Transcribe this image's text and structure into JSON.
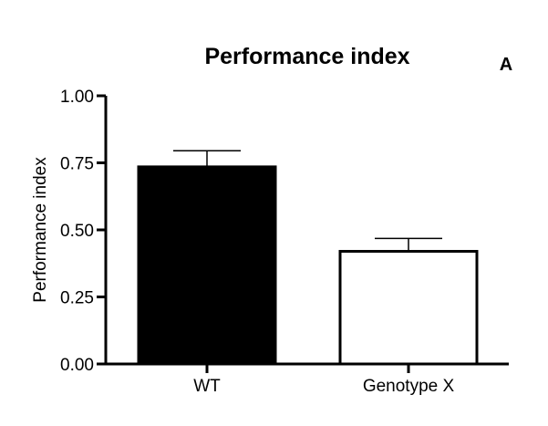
{
  "panel_label": "A",
  "chart_data": {
    "type": "bar",
    "title": "Performance index",
    "xlabel": "",
    "ylabel": "Performance index",
    "categories": [
      "WT",
      "Genotype X"
    ],
    "values": [
      0.735,
      0.42
    ],
    "errors": [
      0.06,
      0.048
    ],
    "bar_fills": [
      "#000000",
      "#ffffff"
    ],
    "bar_stroke": "#000000",
    "ylim": [
      0,
      1
    ],
    "yticks": [
      0,
      0.25,
      0.5,
      0.75,
      1
    ],
    "ytick_labels": [
      "0.00",
      "0.25",
      "0.50",
      "0.75",
      "1.00"
    ],
    "grid": false,
    "legend": "none"
  }
}
